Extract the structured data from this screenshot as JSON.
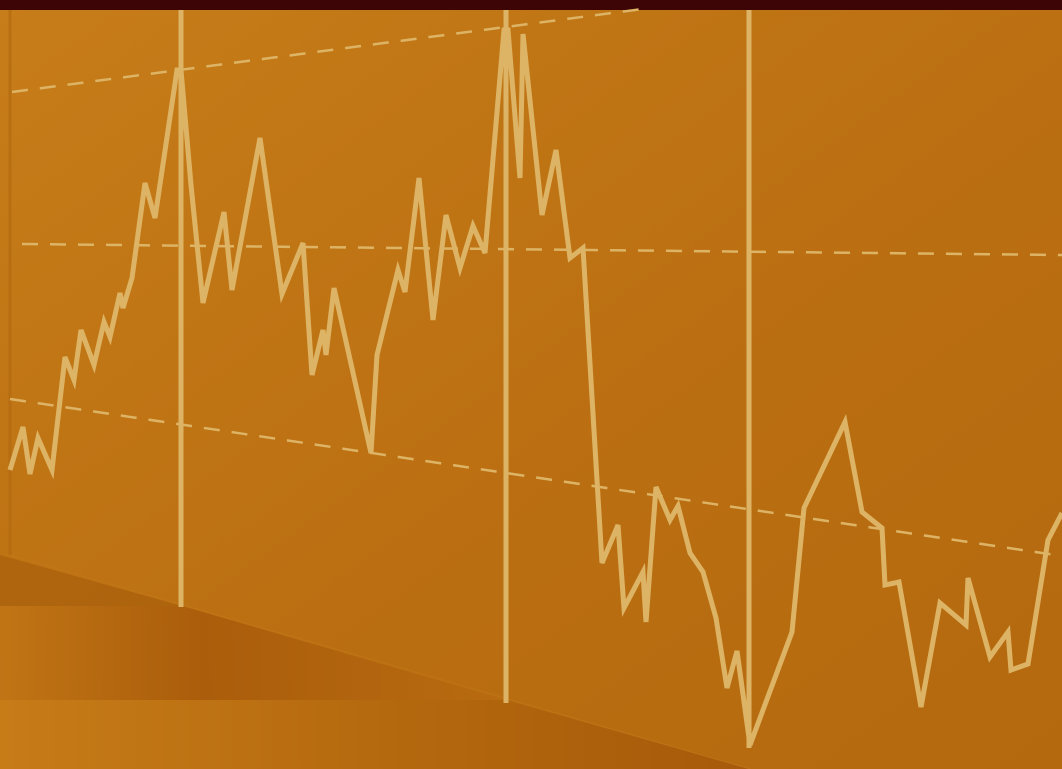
{
  "colors": {
    "top_bar": "#3d0505",
    "background_light": "#c67c18",
    "background_mid": "#bb6f12",
    "background_dark": "#a95e0c",
    "floor_shadow": "#9e5308",
    "line": "#ddb465",
    "dashed_guides": "#ddb465"
  },
  "decoration": {
    "description_free": true,
    "vertical_marker_count": 4,
    "dashed_guide_count": 3
  }
}
